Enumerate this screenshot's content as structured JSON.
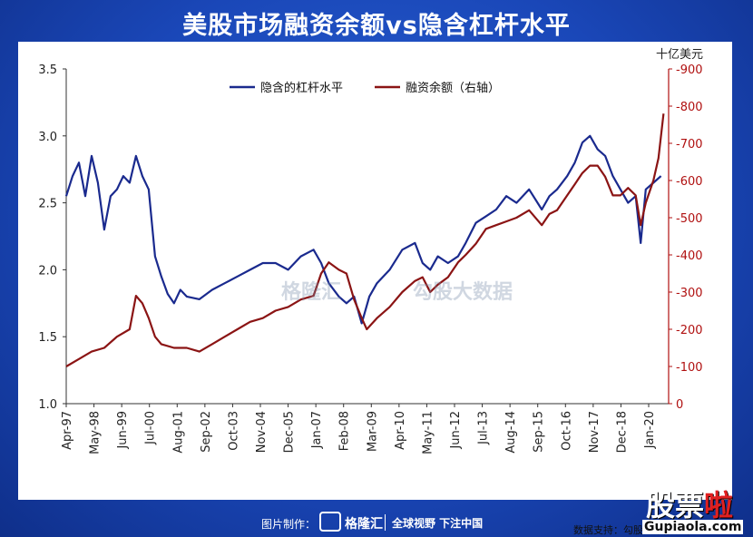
{
  "title": "美股市场融资余额vs隐含杠杆水平",
  "right_unit": "十亿美元",
  "source": "数据支持：勾股大数据　中金公司",
  "watermark": {
    "brand": "格隆汇",
    "brand2": "勾股大数据"
  },
  "footer": {
    "made_by": "图片制作：",
    "logo_text": "格隆汇",
    "slogan": "全球视野 下注中国"
  },
  "stamp": {
    "text_a": "股票",
    "text_b": "啦",
    "url": "Gupiaola.com"
  },
  "colors": {
    "leverage": "#1a2a8e",
    "margin": "#8b1414",
    "right_axis": "#b01010"
  },
  "chart_data": {
    "type": "line",
    "x_ticks": [
      "Apr-97",
      "May-98",
      "Jun-99",
      "Jul-00",
      "Aug-01",
      "Sep-02",
      "Oct-03",
      "Nov-04",
      "Dec-05",
      "Jan-07",
      "Feb-08",
      "Mar-09",
      "Apr-10",
      "May-11",
      "Jun-12",
      "Jul-13",
      "Aug-14",
      "Sep-15",
      "Oct-16",
      "Nov-17",
      "Dec-18",
      "Jan-20"
    ],
    "y_left": {
      "min": 1.0,
      "max": 3.5,
      "ticks": [
        "1.0",
        "1.5",
        "2.0",
        "2.5",
        "3.0",
        "3.5"
      ]
    },
    "y_right": {
      "min": 0,
      "max": 900,
      "ticks": [
        "0",
        "-100",
        "-200",
        "-300",
        "-400",
        "-500",
        "-600",
        "-700",
        "-800",
        "-900"
      ]
    },
    "legend": [
      {
        "name": "隐含的杠杆水平",
        "axis": "left"
      },
      {
        "name": "融资余额（右轴）",
        "axis": "right"
      }
    ],
    "series": [
      {
        "name": "隐含的杠杆水平",
        "axis": "left",
        "x": [
          1997.25,
          1997.5,
          1997.75,
          1998.0,
          1998.25,
          1998.5,
          1998.75,
          1999.0,
          1999.25,
          1999.5,
          1999.75,
          2000.0,
          2000.25,
          2000.5,
          2000.75,
          2001.0,
          2001.25,
          2001.5,
          2001.75,
          2002.0,
          2002.5,
          2003.0,
          2003.5,
          2004.0,
          2004.5,
          2005.0,
          2005.5,
          2006.0,
          2006.5,
          2007.0,
          2007.3,
          2007.6,
          2008.0,
          2008.3,
          2008.6,
          2008.9,
          2009.2,
          2009.5,
          2010.0,
          2010.5,
          2011.0,
          2011.3,
          2011.6,
          2011.9,
          2012.3,
          2012.7,
          2013.0,
          2013.4,
          2013.8,
          2014.2,
          2014.6,
          2015.0,
          2015.5,
          2016.0,
          2016.3,
          2016.6,
          2017.0,
          2017.3,
          2017.6,
          2017.9,
          2018.2,
          2018.5,
          2018.8,
          2019.1,
          2019.4,
          2019.7,
          2019.9,
          2020.1,
          2020.4,
          2020.7
        ],
        "y": [
          2.55,
          2.7,
          2.8,
          2.55,
          2.85,
          2.65,
          2.3,
          2.55,
          2.6,
          2.7,
          2.65,
          2.85,
          2.7,
          2.6,
          2.1,
          1.95,
          1.82,
          1.75,
          1.85,
          1.8,
          1.78,
          1.85,
          1.9,
          1.95,
          2.0,
          2.05,
          2.05,
          2.0,
          2.1,
          2.15,
          2.05,
          1.9,
          1.8,
          1.75,
          1.8,
          1.6,
          1.8,
          1.9,
          2.0,
          2.15,
          2.2,
          2.05,
          2.0,
          2.1,
          2.05,
          2.1,
          2.2,
          2.35,
          2.4,
          2.45,
          2.55,
          2.5,
          2.6,
          2.45,
          2.55,
          2.6,
          2.7,
          2.8,
          2.95,
          3.0,
          2.9,
          2.85,
          2.7,
          2.6,
          2.5,
          2.55,
          2.2,
          2.6,
          2.65,
          2.7
        ]
      },
      {
        "name": "融资余额（右轴）",
        "axis": "right",
        "x": [
          1997.25,
          1997.75,
          1998.25,
          1998.75,
          1999.25,
          1999.75,
          2000.0,
          2000.25,
          2000.5,
          2000.75,
          2001.0,
          2001.5,
          2002.0,
          2002.5,
          2003.0,
          2003.5,
          2004.0,
          2004.5,
          2005.0,
          2005.5,
          2006.0,
          2006.5,
          2007.0,
          2007.3,
          2007.6,
          2008.0,
          2008.3,
          2008.6,
          2008.9,
          2009.1,
          2009.5,
          2010.0,
          2010.5,
          2011.0,
          2011.3,
          2011.6,
          2011.9,
          2012.3,
          2012.7,
          2013.0,
          2013.4,
          2013.8,
          2014.2,
          2014.6,
          2015.0,
          2015.5,
          2016.0,
          2016.3,
          2016.6,
          2017.0,
          2017.3,
          2017.6,
          2017.9,
          2018.2,
          2018.5,
          2018.8,
          2019.1,
          2019.4,
          2019.7,
          2019.9,
          2020.1,
          2020.4,
          2020.6,
          2020.8
        ],
        "y": [
          100,
          120,
          140,
          150,
          180,
          200,
          290,
          270,
          230,
          180,
          160,
          150,
          150,
          140,
          160,
          180,
          200,
          220,
          230,
          250,
          260,
          280,
          290,
          350,
          380,
          360,
          350,
          280,
          230,
          200,
          230,
          260,
          300,
          330,
          340,
          300,
          320,
          340,
          380,
          400,
          430,
          470,
          480,
          490,
          500,
          520,
          480,
          510,
          520,
          560,
          590,
          620,
          640,
          640,
          610,
          560,
          560,
          580,
          560,
          480,
          540,
          600,
          660,
          780
        ]
      }
    ]
  }
}
